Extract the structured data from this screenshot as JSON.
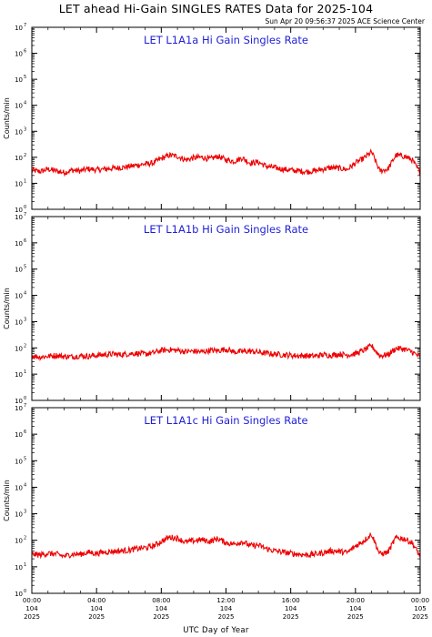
{
  "header": {
    "title": "LET ahead Hi-Gain SINGLES RATES Data for 2025-104",
    "timestamp": "Sun Apr 20 09:56:37 2025 ACE Science Center"
  },
  "x_axis_title": "UTC Day of Year",
  "colors": {
    "series": "#ee0000",
    "panel_title": "#1f1fd6",
    "axes": "#000000"
  },
  "chart_data": [
    {
      "type": "line",
      "title": "LET L1A1a Hi Gain Singles Rate",
      "ylabel": "Counts/min",
      "yscale": "log",
      "ylim": [
        1,
        10000000
      ],
      "y_tick_labels": [
        "10",
        "10",
        "10",
        "10",
        "10",
        "10",
        "10",
        "10"
      ],
      "y_tick_exponents": [
        "0",
        "1",
        "2",
        "3",
        "4",
        "5",
        "6",
        "7"
      ],
      "xlim": [
        0,
        24
      ],
      "x_tick_labels": [
        [
          "00:00",
          "104",
          "2025"
        ],
        [
          "04:00",
          "104",
          "2025"
        ],
        [
          "08:00",
          "104",
          "2025"
        ],
        [
          "12:00",
          "104",
          "2025"
        ],
        [
          "16:00",
          "104",
          "2025"
        ],
        [
          "20:00",
          "104",
          "2025"
        ],
        [
          "00:00",
          "105",
          "2025"
        ]
      ],
      "series": [
        {
          "x": [
            0,
            0.5,
            1,
            1.5,
            2,
            2.5,
            3,
            3.5,
            4,
            4.5,
            5,
            5.5,
            6,
            6.5,
            7,
            7.5,
            8,
            8.5,
            9,
            9.5,
            10,
            10.5,
            11,
            11.5,
            12,
            12.5,
            13,
            13.5,
            14,
            14.5,
            15,
            15.5,
            16,
            16.5,
            17,
            17.5,
            18,
            18.5,
            19,
            19.5,
            20,
            20.5,
            21,
            21.5,
            22,
            22.5,
            23,
            23.5,
            24
          ],
          "values": [
            32,
            28,
            35,
            30,
            26,
            32,
            30,
            36,
            33,
            35,
            38,
            40,
            44,
            50,
            55,
            60,
            90,
            120,
            110,
            80,
            95,
            100,
            85,
            110,
            80,
            70,
            95,
            60,
            65,
            45,
            40,
            35,
            32,
            30,
            28,
            30,
            35,
            40,
            38,
            34,
            60,
            90,
            160,
            30,
            35,
            120,
            110,
            80,
            25
          ]
        }
      ]
    },
    {
      "type": "line",
      "title": "LET L1A1b Hi Gain Singles Rate",
      "ylabel": "Counts/min",
      "yscale": "log",
      "ylim": [
        1,
        10000000
      ],
      "y_tick_labels": [
        "10",
        "10",
        "10",
        "10",
        "10",
        "10",
        "10",
        "10"
      ],
      "y_tick_exponents": [
        "0",
        "1",
        "2",
        "3",
        "4",
        "5",
        "6",
        "7"
      ],
      "xlim": [
        0,
        24
      ],
      "x_tick_labels": [
        [
          "00:00",
          "104",
          "2025"
        ],
        [
          "04:00",
          "104",
          "2025"
        ],
        [
          "08:00",
          "104",
          "2025"
        ],
        [
          "12:00",
          "104",
          "2025"
        ],
        [
          "16:00",
          "104",
          "2025"
        ],
        [
          "20:00",
          "104",
          "2025"
        ],
        [
          "00:00",
          "105",
          "2025"
        ]
      ],
      "series": [
        {
          "x": [
            0,
            0.5,
            1,
            1.5,
            2,
            2.5,
            3,
            3.5,
            4,
            4.5,
            5,
            5.5,
            6,
            6.5,
            7,
            7.5,
            8,
            8.5,
            9,
            9.5,
            10,
            10.5,
            11,
            11.5,
            12,
            12.5,
            13,
            13.5,
            14,
            14.5,
            15,
            15.5,
            16,
            16.5,
            17,
            17.5,
            18,
            18.5,
            19,
            19.5,
            20,
            20.5,
            21,
            21.5,
            22,
            22.5,
            23,
            23.5,
            24
          ],
          "values": [
            50,
            45,
            48,
            52,
            47,
            46,
            50,
            48,
            52,
            55,
            58,
            55,
            60,
            62,
            58,
            65,
            80,
            85,
            80,
            72,
            75,
            70,
            80,
            78,
            90,
            70,
            72,
            75,
            68,
            62,
            58,
            55,
            52,
            50,
            50,
            48,
            55,
            52,
            58,
            54,
            60,
            80,
            120,
            50,
            55,
            95,
            90,
            70,
            45
          ]
        }
      ]
    },
    {
      "type": "line",
      "title": "LET L1A1c Hi Gain Singles Rate",
      "ylabel": "Counts/min",
      "yscale": "log",
      "ylim": [
        1,
        10000000
      ],
      "y_tick_labels": [
        "10",
        "10",
        "10",
        "10",
        "10",
        "10",
        "10",
        "10"
      ],
      "y_tick_exponents": [
        "0",
        "1",
        "2",
        "3",
        "4",
        "5",
        "6",
        "7"
      ],
      "xlim": [
        0,
        24
      ],
      "x_tick_labels": [
        [
          "00:00",
          "104",
          "2025"
        ],
        [
          "04:00",
          "104",
          "2025"
        ],
        [
          "08:00",
          "104",
          "2025"
        ],
        [
          "12:00",
          "104",
          "2025"
        ],
        [
          "16:00",
          "104",
          "2025"
        ],
        [
          "20:00",
          "104",
          "2025"
        ],
        [
          "00:00",
          "105",
          "2025"
        ]
      ],
      "series": [
        {
          "x": [
            0,
            0.5,
            1,
            1.5,
            2,
            2.5,
            3,
            3.5,
            4,
            4.5,
            5,
            5.5,
            6,
            6.5,
            7,
            7.5,
            8,
            8.5,
            9,
            9.5,
            10,
            10.5,
            11,
            11.5,
            12,
            12.5,
            13,
            13.5,
            14,
            14.5,
            15,
            15.5,
            16,
            16.5,
            17,
            17.5,
            18,
            18.5,
            19,
            19.5,
            20,
            20.5,
            21,
            21.5,
            22,
            22.5,
            23,
            23.5,
            24
          ],
          "values": [
            30,
            28,
            32,
            30,
            25,
            30,
            30,
            35,
            32,
            36,
            38,
            40,
            42,
            48,
            52,
            60,
            90,
            130,
            120,
            85,
            95,
            105,
            90,
            115,
            80,
            72,
            90,
            62,
            65,
            48,
            40,
            36,
            32,
            30,
            28,
            30,
            34,
            40,
            38,
            34,
            60,
            95,
            170,
            30,
            35,
            125,
            115,
            80,
            25
          ]
        }
      ]
    }
  ]
}
